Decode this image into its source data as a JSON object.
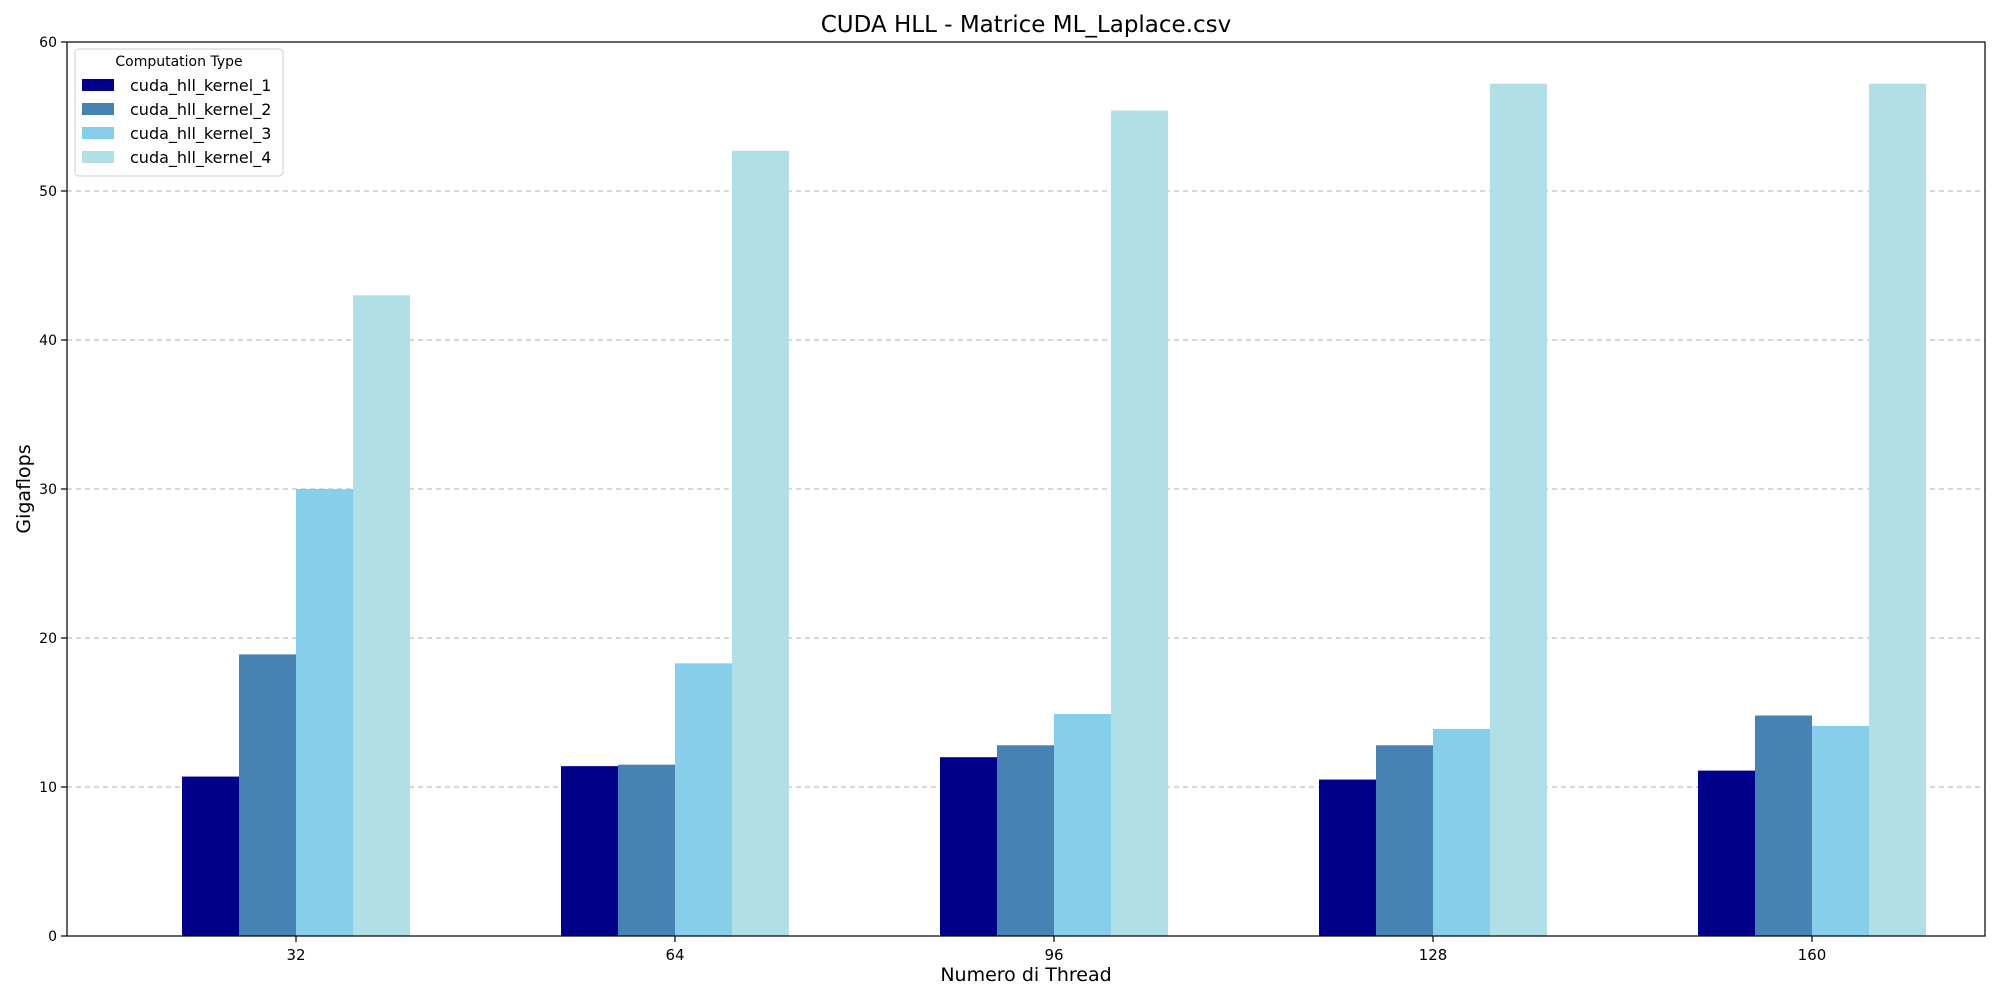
{
  "chart_data": {
    "type": "bar",
    "title": "CUDA HLL - Matrice ML_Laplace.csv",
    "xlabel": "Numero di Thread",
    "ylabel": "Gigaflops",
    "categories": [
      "32",
      "64",
      "96",
      "128",
      "160"
    ],
    "ylim": [
      0,
      60
    ],
    "yticks": [
      0,
      10,
      20,
      30,
      40,
      50,
      60
    ],
    "grid": "horizontal dashed",
    "legend": {
      "title": "Computation Type",
      "placement": "top-left"
    },
    "series": [
      {
        "name": "cuda_hll_kernel_1",
        "color": "#00008b",
        "values": [
          10.7,
          11.4,
          12.0,
          10.5,
          11.1
        ]
      },
      {
        "name": "cuda_hll_kernel_2",
        "color": "#4682b4",
        "values": [
          18.9,
          11.5,
          12.8,
          12.8,
          14.8
        ]
      },
      {
        "name": "cuda_hll_kernel_3",
        "color": "#87ceeb",
        "values": [
          30.0,
          18.3,
          14.9,
          13.9,
          14.1
        ]
      },
      {
        "name": "cuda_hll_kernel_4",
        "color": "#b0e0e6",
        "values": [
          43.0,
          52.7,
          55.4,
          57.2,
          57.2
        ]
      }
    ]
  }
}
